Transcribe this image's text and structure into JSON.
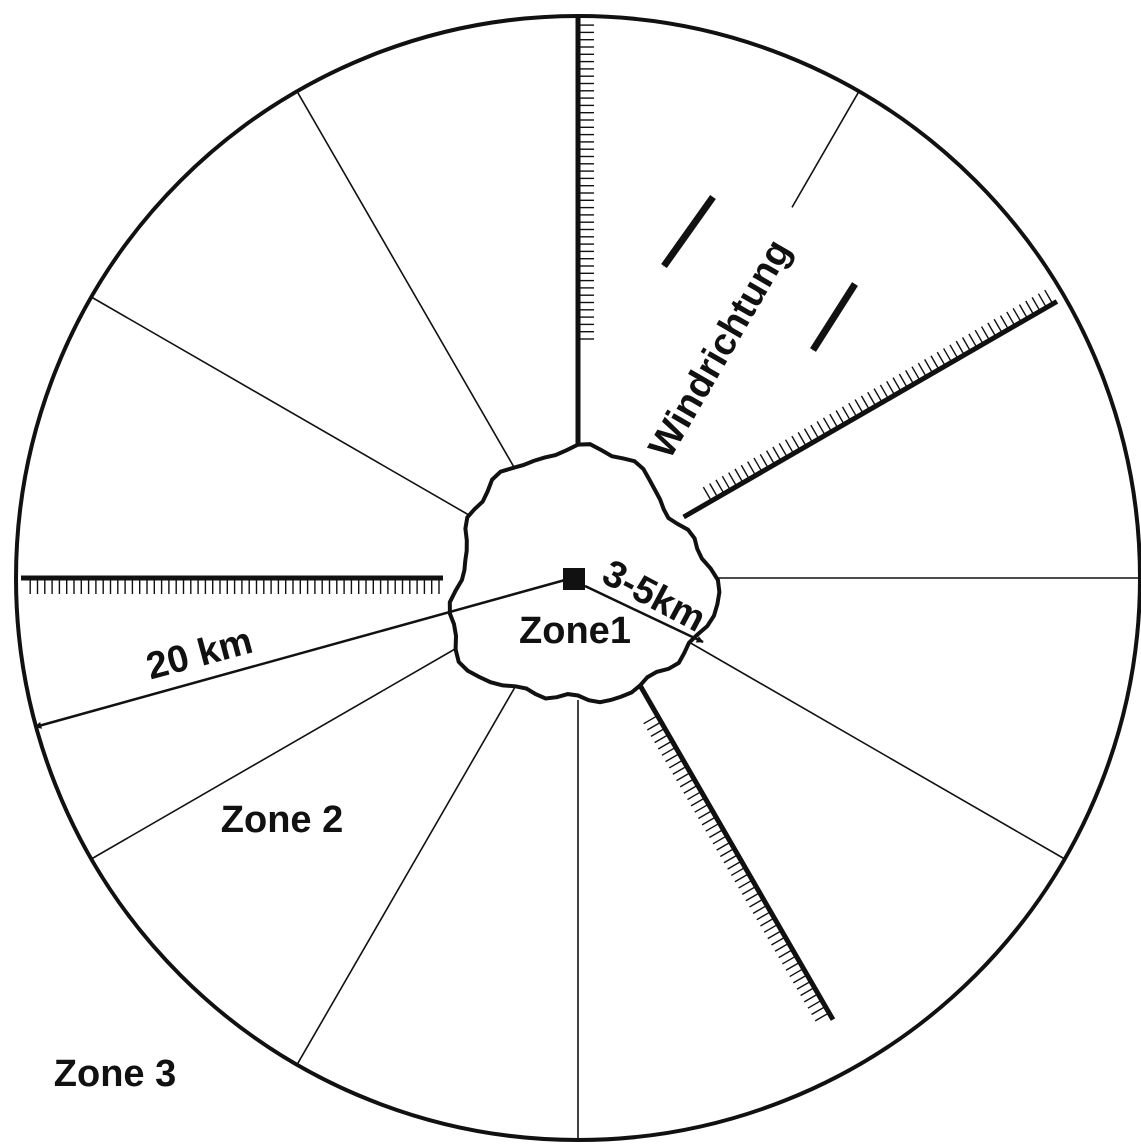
{
  "labels": {
    "wind": "Windrichtung",
    "inner_radius": "3-5km",
    "outer_radius": "20 km",
    "zone1": "Zone1",
    "zone2": "Zone 2",
    "zone3": "Zone 3"
  }
}
